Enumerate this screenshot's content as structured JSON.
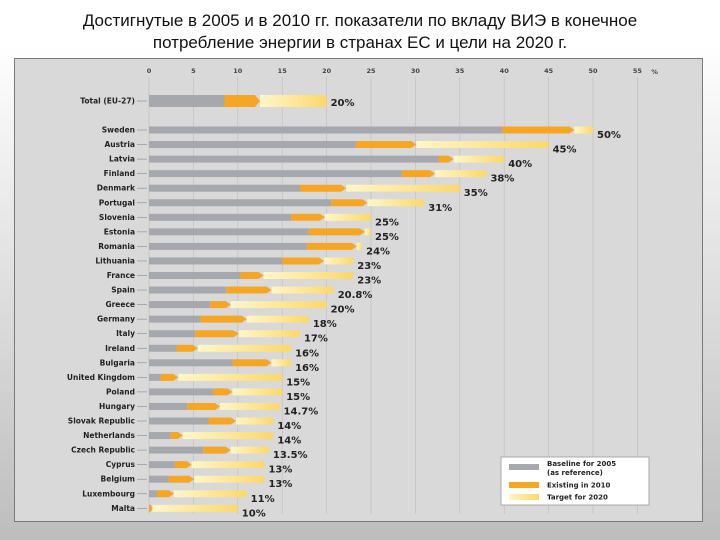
{
  "slide": {
    "title_line1": "Достигнутые в 2005 и в 2010 гг. показатели по вкладу ВИЭ в конечное",
    "title_line2": "потребление энергии в странах ЕС и цели на 2020 г."
  },
  "colors": {
    "baseline": "#a6a8ad",
    "existing": "#f6a623",
    "target_start": "#fff6c8",
    "target_end": "#fcd86a",
    "panel": "#d9d9d9"
  },
  "chart_data": {
    "type": "bar",
    "orientation": "horizontal",
    "xlim": [
      0,
      55
    ],
    "x_ticks": [
      0,
      5,
      10,
      15,
      20,
      25,
      30,
      35,
      40,
      45,
      50,
      55
    ],
    "unit_label": "%",
    "grid": true,
    "legend_position": "bottom-right",
    "categories": [
      "Total (EU-27)",
      "Sweden",
      "Austria",
      "Latvia",
      "Finland",
      "Denmark",
      "Portugal",
      "Slovenia",
      "Estonia",
      "Romania",
      "Lithuania",
      "France",
      "Spain",
      "Greece",
      "Germany",
      "Italy",
      "Ireland",
      "Bulgaria",
      "United Kingdom",
      "Poland",
      "Hungary",
      "Slovak Republic",
      "Netherlands",
      "Czech Republic",
      "Cyprus",
      "Belgium",
      "Luxembourg",
      "Malta"
    ],
    "series": [
      {
        "name": "Baseline for 2005 (as reference)",
        "values": [
          8.5,
          39.8,
          23.3,
          32.6,
          28.5,
          17.0,
          20.5,
          16.0,
          18.0,
          17.8,
          15.0,
          10.3,
          8.7,
          6.9,
          5.8,
          5.2,
          3.1,
          9.4,
          1.3,
          7.2,
          4.3,
          6.7,
          2.4,
          6.1,
          2.9,
          2.2,
          0.9,
          0.0
        ]
      },
      {
        "name": "Existing in 2010",
        "values": [
          12.5,
          47.9,
          30.1,
          34.3,
          32.2,
          22.2,
          24.6,
          19.8,
          24.3,
          23.4,
          19.7,
          12.9,
          13.8,
          9.2,
          11.0,
          10.1,
          5.5,
          13.8,
          3.3,
          9.4,
          8.0,
          9.8,
          3.8,
          9.2,
          4.8,
          5.1,
          2.8,
          0.4
        ]
      },
      {
        "name": "Target for 2020",
        "values": [
          20,
          50,
          45,
          40,
          38,
          35,
          31,
          25,
          25,
          24,
          23,
          23,
          20.8,
          20,
          18,
          17,
          16,
          16,
          15,
          15,
          14.7,
          14,
          14,
          13.5,
          13,
          13,
          11,
          10
        ]
      }
    ],
    "target_labels": [
      "20%",
      "50%",
      "45%",
      "40%",
      "38%",
      "35%",
      "31%",
      "25%",
      "25%",
      "24%",
      "23%",
      "23%",
      "20.8%",
      "20%",
      "18%",
      "17%",
      "16%",
      "16%",
      "15%",
      "15%",
      "14.7%",
      "14%",
      "14%",
      "13.5%",
      "13%",
      "13%",
      "11%",
      "10%"
    ],
    "legend": [
      {
        "key": "baseline",
        "label_line1": "Baseline for 2005",
        "label_line2": "(as reference)"
      },
      {
        "key": "existing",
        "label_line1": "Existing in 2010",
        "label_line2": ""
      },
      {
        "key": "target",
        "label_line1": "Target for 2020",
        "label_line2": ""
      }
    ]
  }
}
